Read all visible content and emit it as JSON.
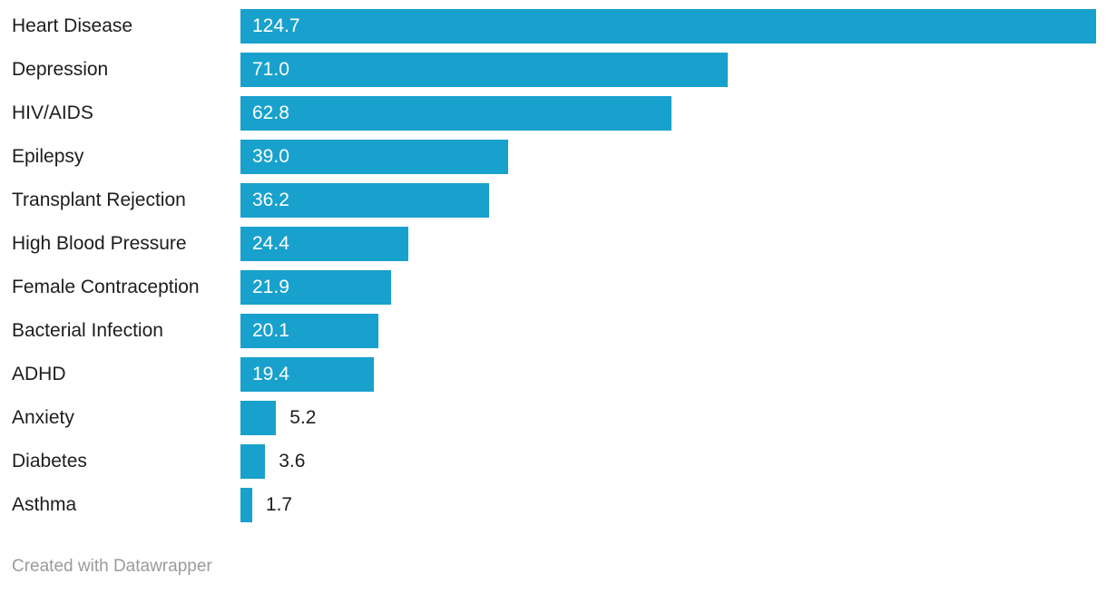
{
  "chart_data": {
    "type": "bar",
    "orientation": "horizontal",
    "title": "",
    "xlabel": "",
    "ylabel": "",
    "categories": [
      "Heart Disease",
      "Depression",
      "HIV/AIDS",
      "Epilepsy",
      "Transplant Rejection",
      "High Blood Pressure",
      "Female Contraception",
      "Bacterial Infection",
      "ADHD",
      "Anxiety",
      "Diabetes",
      "Asthma"
    ],
    "values": [
      124.7,
      71.0,
      62.8,
      39.0,
      36.2,
      24.4,
      21.9,
      20.1,
      19.4,
      5.2,
      3.6,
      1.7
    ],
    "value_labels": [
      "124.7",
      "71.0",
      "62.8",
      "39.0",
      "36.2",
      "24.4",
      "21.9",
      "20.1",
      "19.4",
      "5.2",
      "3.6",
      "1.7"
    ],
    "xlim": [
      0,
      124.7
    ],
    "grid": false,
    "legend": false,
    "bar_color": "#18a1cd",
    "category_label_color": "#1d1d1d",
    "value_label_color_inside": "#ffffff",
    "value_label_color_outside": "#1d1d1d"
  },
  "footer": {
    "credit": "Created with Datawrapper",
    "color": "#9b9b9b"
  }
}
